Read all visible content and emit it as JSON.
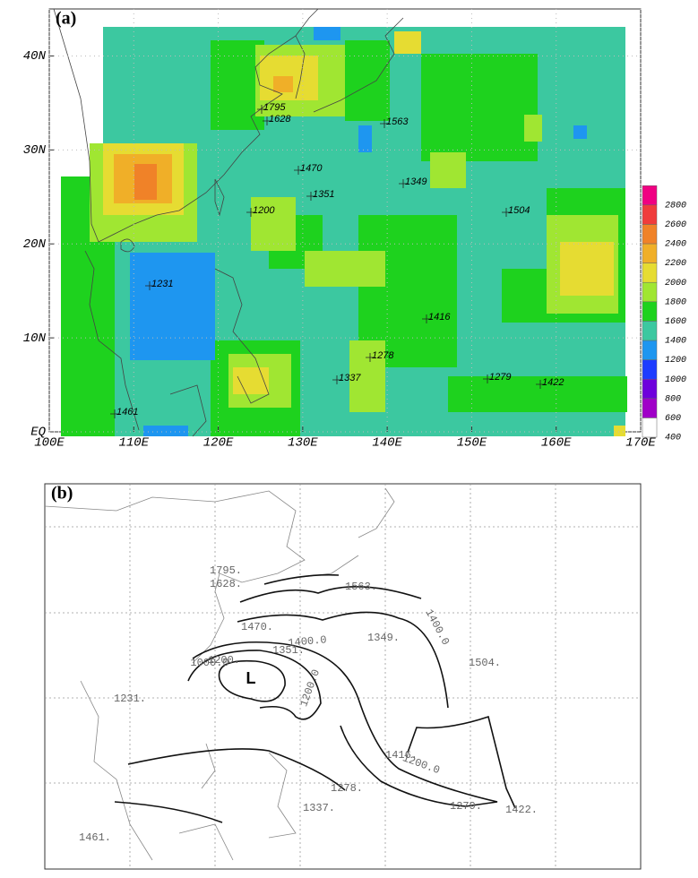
{
  "panel_a": {
    "label": "(a)",
    "xlim": [
      100,
      170
    ],
    "ylim": [
      0,
      45
    ],
    "xticks": [
      {
        "value": 100,
        "label": "100E"
      },
      {
        "value": 110,
        "label": "110E"
      },
      {
        "value": 120,
        "label": "120E"
      },
      {
        "value": 130,
        "label": "130E"
      },
      {
        "value": 140,
        "label": "140E"
      },
      {
        "value": 150,
        "label": "150E"
      },
      {
        "value": 160,
        "label": "160E"
      },
      {
        "value": 170,
        "label": "170E"
      }
    ],
    "yticks": [
      {
        "value": 0,
        "label": "EQ"
      },
      {
        "value": 10,
        "label": "10N"
      },
      {
        "value": 20,
        "label": "20N"
      },
      {
        "value": 30,
        "label": "30N"
      },
      {
        "value": 40,
        "label": "40N"
      }
    ],
    "grid": true,
    "colorbar": {
      "levels": [
        400,
        600,
        800,
        1000,
        1200,
        1400,
        1600,
        1800,
        2000,
        2200,
        2400,
        2600,
        2800
      ],
      "colors": [
        "#ffffff",
        "#a000c8",
        "#6e00dc",
        "#1e3cff",
        "#1e96f0",
        "#3cc8a0",
        "#1ed21e",
        "#a0e632",
        "#e6dc32",
        "#f0af28",
        "#f08228",
        "#f03c3c",
        "#f00082"
      ]
    },
    "stations": [
      1795,
      1628,
      1563,
      1470,
      1349,
      1351,
      1200,
      1504,
      1231,
      1416,
      1278,
      1337,
      1279,
      1422,
      1461
    ]
  },
  "panel_b": {
    "label": "(b)",
    "stations": [
      "1795.",
      "1628.",
      "1563.",
      "1470.",
      "1349.",
      "1351.",
      "1200.",
      "1504.",
      "1231.",
      "1416.",
      "1278.",
      "1337.",
      "1279.",
      "1422.",
      "1461."
    ],
    "contour_labels": [
      "1400.0",
      "1400.0",
      "1000.0",
      "1200.0",
      "1200.0"
    ],
    "low_label": "L"
  }
}
